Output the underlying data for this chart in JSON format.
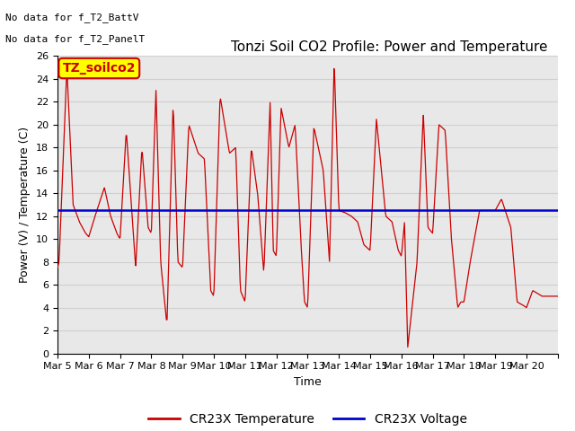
{
  "title": "Tonzi Soil CO2 Profile: Power and Temperature",
  "xlabel": "Time",
  "ylabel": "Power (V) / Temperature (C)",
  "ylim": [
    0,
    26
  ],
  "yticks": [
    0,
    2,
    4,
    6,
    8,
    10,
    12,
    14,
    16,
    18,
    20,
    22,
    24,
    26
  ],
  "x_labels": [
    "Mar 5",
    "Mar 6",
    "Mar 7",
    "Mar 8",
    "Mar 9",
    "Mar 10",
    "Mar 11",
    "Mar 12",
    "Mar 13",
    "Mar 14",
    "Mar 15",
    "Mar 16",
    "Mar 17",
    "Mar 18",
    "Mar 19",
    "Mar 20"
  ],
  "voltage_level": 12.5,
  "voltage_color": "#0000cc",
  "temp_color": "#cc0000",
  "annotation_lines": [
    "No data for f_T2_BattV",
    "No data for f_T2_PanelT"
  ],
  "legend_box_text": "TZ_soilco2",
  "legend_box_color": "#ffff00",
  "legend_box_border": "#cc0000",
  "background_color": "#ffffff",
  "grid_color": "#d0d0d0",
  "title_fontsize": 11,
  "axis_fontsize": 9,
  "tick_fontsize": 8,
  "annotation_fontsize": 8,
  "n_days": 16
}
